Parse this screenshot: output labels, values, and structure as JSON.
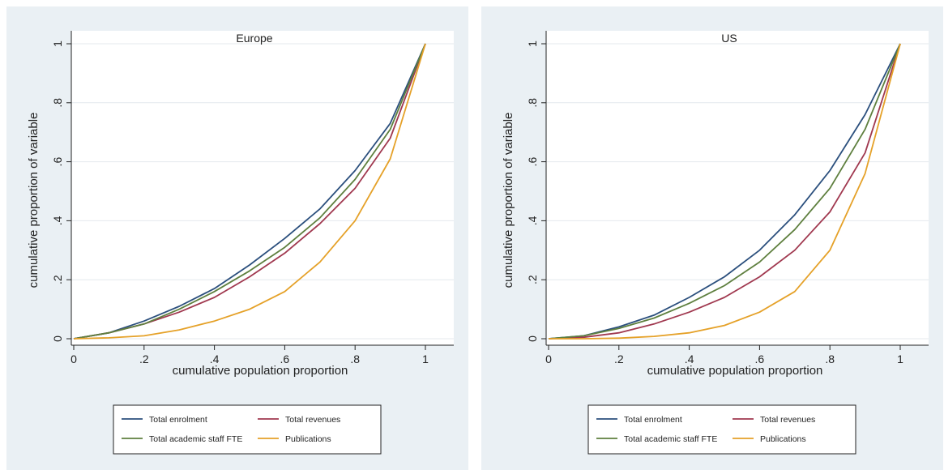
{
  "charts": [
    {
      "type": "line",
      "title": "Europe",
      "xlabel": "cumulative population proportion",
      "ylabel": "cumulative proportion of variable",
      "xlim": [
        0,
        1
      ],
      "ylim": [
        0,
        1
      ],
      "grid": "horizontal",
      "legend_position": "bottom",
      "x_ticks": [
        "0",
        ".2",
        ".4",
        ".6",
        ".8",
        "1"
      ],
      "y_ticks": [
        "0",
        ".2",
        ".4",
        ".6",
        ".8",
        "1"
      ],
      "x": [
        0,
        0.1,
        0.2,
        0.3,
        0.4,
        0.5,
        0.6,
        0.7,
        0.8,
        0.9,
        1.0
      ],
      "series": [
        {
          "name": "Total enrolment",
          "color": "#2b4f7d",
          "values": [
            0,
            0.02,
            0.06,
            0.11,
            0.17,
            0.25,
            0.34,
            0.44,
            0.57,
            0.73,
            1.0
          ]
        },
        {
          "name": "Total revenues",
          "color": "#a0384f",
          "values": [
            0,
            0.02,
            0.05,
            0.09,
            0.14,
            0.21,
            0.29,
            0.39,
            0.51,
            0.68,
            1.0
          ]
        },
        {
          "name": "Total academic staff FTE",
          "color": "#5e7f3e",
          "values": [
            0,
            0.02,
            0.05,
            0.1,
            0.16,
            0.23,
            0.31,
            0.41,
            0.54,
            0.71,
            1.0
          ]
        },
        {
          "name": "Publications",
          "color": "#e5a128",
          "values": [
            0,
            0.003,
            0.01,
            0.03,
            0.06,
            0.1,
            0.16,
            0.26,
            0.4,
            0.61,
            1.0
          ]
        }
      ]
    },
    {
      "type": "line",
      "title": "US",
      "xlabel": "cumulative population proportion",
      "ylabel": "cumulative proportion of variable",
      "xlim": [
        0,
        1
      ],
      "ylim": [
        0,
        1
      ],
      "grid": "horizontal",
      "legend_position": "bottom",
      "x_ticks": [
        "0",
        ".2",
        ".4",
        ".6",
        ".8",
        "1"
      ],
      "y_ticks": [
        "0",
        ".2",
        ".4",
        ".6",
        ".8",
        "1"
      ],
      "x": [
        0,
        0.1,
        0.2,
        0.3,
        0.4,
        0.5,
        0.6,
        0.7,
        0.8,
        0.9,
        1.0
      ],
      "series": [
        {
          "name": "Total enrolment",
          "color": "#2b4f7d",
          "values": [
            0,
            0.01,
            0.04,
            0.08,
            0.14,
            0.21,
            0.3,
            0.42,
            0.57,
            0.76,
            1.0
          ]
        },
        {
          "name": "Total revenues",
          "color": "#a0384f",
          "values": [
            0,
            0.005,
            0.02,
            0.05,
            0.09,
            0.14,
            0.21,
            0.3,
            0.43,
            0.63,
            1.0
          ]
        },
        {
          "name": "Total academic staff FTE",
          "color": "#5e7f3e",
          "values": [
            0,
            0.01,
            0.035,
            0.07,
            0.12,
            0.18,
            0.26,
            0.37,
            0.51,
            0.71,
            1.0
          ]
        },
        {
          "name": "Publications",
          "color": "#e5a128",
          "values": [
            0,
            0.0,
            0.002,
            0.008,
            0.02,
            0.045,
            0.09,
            0.16,
            0.3,
            0.56,
            1.0
          ]
        }
      ]
    }
  ]
}
